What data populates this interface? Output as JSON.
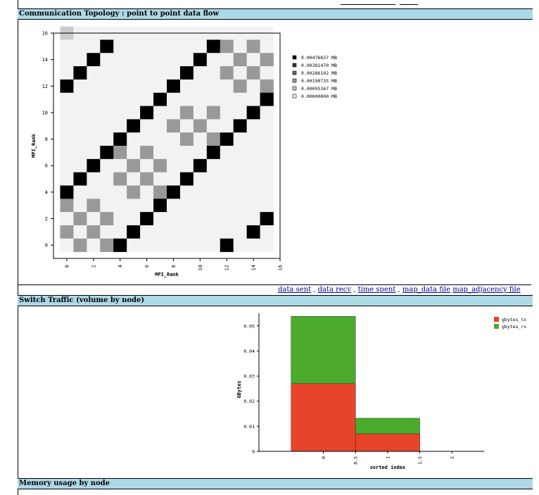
{
  "sections": {
    "topology_title": "Communication Topology : point to point data flow",
    "switch_title": "Switch Traffic (volume by node)",
    "memory_title": "Memory usage by node"
  },
  "links": [
    {
      "label": "data sent"
    },
    {
      "label": "data recv"
    },
    {
      "label": "time spent"
    },
    {
      "label": "map_data file"
    },
    {
      "label": "map_adjacency file"
    }
  ],
  "chart_data": [
    {
      "type": "heatmap",
      "xlabel": "MPI_Rank",
      "ylabel": "MPI_Rank",
      "xlim": [
        -1,
        16
      ],
      "ylim": [
        -1,
        16
      ],
      "xticks": [
        0,
        2,
        4,
        6,
        8,
        10,
        12,
        14,
        16
      ],
      "yticks": [
        0,
        2,
        4,
        6,
        8,
        10,
        12,
        14,
        16
      ],
      "legend_position": "right",
      "levels": [
        {
          "label": "0.00476837 MB",
          "color": "#000000"
        },
        {
          "label": "0.00381470 MB",
          "color": "#333333"
        },
        {
          "label": "0.00286102 MB",
          "color": "#666666"
        },
        {
          "label": "0.00190735 MB",
          "color": "#999999"
        },
        {
          "label": "0.00095367 MB",
          "color": "#cccccc"
        },
        {
          "label": "0.00000000 MB",
          "color": "#f2f2f2"
        }
      ],
      "matrix_rows_top_to_bottom": [
        [
          4,
          5,
          5,
          5,
          5,
          5,
          5,
          5,
          5,
          5,
          5,
          5,
          5,
          5,
          5,
          5
        ],
        [
          5,
          5,
          5,
          0,
          5,
          5,
          5,
          5,
          5,
          5,
          5,
          0,
          3,
          5,
          3,
          5
        ],
        [
          5,
          5,
          0,
          5,
          5,
          5,
          5,
          5,
          5,
          5,
          0,
          5,
          5,
          3,
          5,
          3
        ],
        [
          5,
          0,
          5,
          5,
          5,
          5,
          5,
          5,
          5,
          0,
          5,
          5,
          3,
          5,
          3,
          5
        ],
        [
          0,
          5,
          5,
          5,
          5,
          5,
          5,
          5,
          0,
          5,
          5,
          5,
          5,
          3,
          5,
          3
        ],
        [
          5,
          5,
          5,
          5,
          5,
          5,
          5,
          0,
          5,
          5,
          5,
          5,
          5,
          5,
          5,
          0
        ],
        [
          5,
          5,
          5,
          5,
          5,
          5,
          0,
          5,
          5,
          3,
          5,
          3,
          5,
          5,
          0,
          5
        ],
        [
          5,
          5,
          5,
          5,
          5,
          0,
          5,
          5,
          3,
          5,
          3,
          5,
          5,
          0,
          5,
          5
        ],
        [
          5,
          5,
          5,
          5,
          0,
          5,
          5,
          5,
          5,
          3,
          5,
          3,
          0,
          5,
          5,
          5
        ],
        [
          5,
          5,
          5,
          0,
          3,
          5,
          3,
          5,
          5,
          5,
          5,
          0,
          5,
          5,
          5,
          5
        ],
        [
          5,
          5,
          0,
          5,
          5,
          3,
          5,
          3,
          5,
          5,
          0,
          5,
          5,
          5,
          5,
          5
        ],
        [
          5,
          0,
          5,
          5,
          3,
          5,
          3,
          5,
          5,
          0,
          5,
          5,
          5,
          5,
          5,
          5
        ],
        [
          0,
          5,
          5,
          5,
          5,
          3,
          5,
          3,
          0,
          5,
          5,
          5,
          5,
          5,
          5,
          5
        ],
        [
          3,
          5,
          3,
          5,
          5,
          5,
          5,
          0,
          5,
          5,
          5,
          5,
          5,
          5,
          5,
          5
        ],
        [
          5,
          3,
          5,
          3,
          5,
          5,
          0,
          5,
          5,
          5,
          5,
          5,
          5,
          5,
          5,
          0
        ],
        [
          3,
          5,
          3,
          5,
          5,
          0,
          5,
          5,
          5,
          5,
          5,
          5,
          5,
          5,
          0,
          5
        ],
        [
          5,
          3,
          5,
          3,
          0,
          5,
          5,
          5,
          5,
          5,
          5,
          5,
          0,
          5,
          5,
          5
        ]
      ]
    },
    {
      "type": "bar",
      "stacked": true,
      "xlabel": "sorted index",
      "ylabel": "GBytes",
      "xlim": [
        -1,
        2.5
      ],
      "ylim": [
        0,
        0.055
      ],
      "xticks": [
        "0",
        "0.5",
        "1",
        "1.5",
        "2"
      ],
      "yticks": [
        "0",
        "0.01",
        "0.02",
        "0.03",
        "0.04",
        "0.05"
      ],
      "legend_position": "top-right",
      "bars": [
        {
          "x0": -0.5,
          "x1": 0.5,
          "tx": 0.027,
          "rx": 0.0268
        },
        {
          "x0": 0.5,
          "x1": 1.5,
          "tx": 0.007,
          "rx": 0.0062
        }
      ],
      "series": [
        {
          "name": "gbytes_tx",
          "color": "#e8432b"
        },
        {
          "name": "gbytes_rx",
          "color": "#4caa2d"
        }
      ]
    }
  ]
}
